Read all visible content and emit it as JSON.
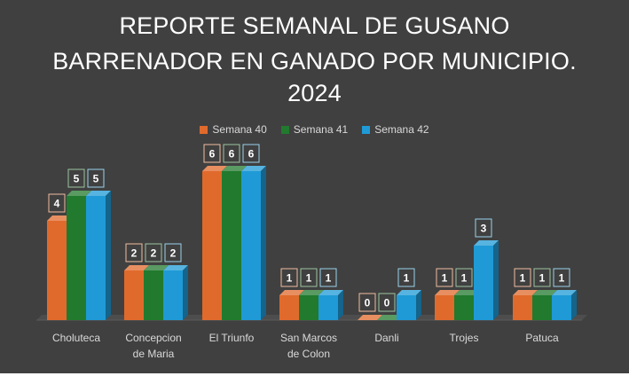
{
  "title_lines": [
    "REPORTE SEMANAL DE GUSANO",
    "BARRENADOR EN GANADO POR MUNICIPIO.",
    "2024"
  ],
  "chart_data": {
    "type": "bar",
    "title": "REPORTE SEMANAL DE GUSANO BARRENADOR EN GANADO POR MUNICIPIO. 2024",
    "categories": [
      [
        "Choluteca"
      ],
      [
        "Concepcion",
        "de Maria"
      ],
      [
        "El Triunfo"
      ],
      [
        "San Marcos",
        "de Colon"
      ],
      [
        "Danli"
      ],
      [
        "Trojes"
      ],
      [
        "Patuca"
      ]
    ],
    "series": [
      {
        "name": "Semana 40",
        "color": "#e06a2c",
        "values": [
          4,
          2,
          6,
          1,
          0,
          1,
          1
        ]
      },
      {
        "name": "Semana 41",
        "color": "#217a2e",
        "values": [
          5,
          2,
          6,
          1,
          0,
          1,
          1
        ]
      },
      {
        "name": "Semana 42",
        "color": "#1f9ad6",
        "values": [
          5,
          2,
          6,
          1,
          1,
          3,
          1
        ]
      }
    ],
    "ylim": [
      0,
      7
    ],
    "grid": false,
    "legend_position": "top",
    "style": "3d-clustered-column"
  }
}
